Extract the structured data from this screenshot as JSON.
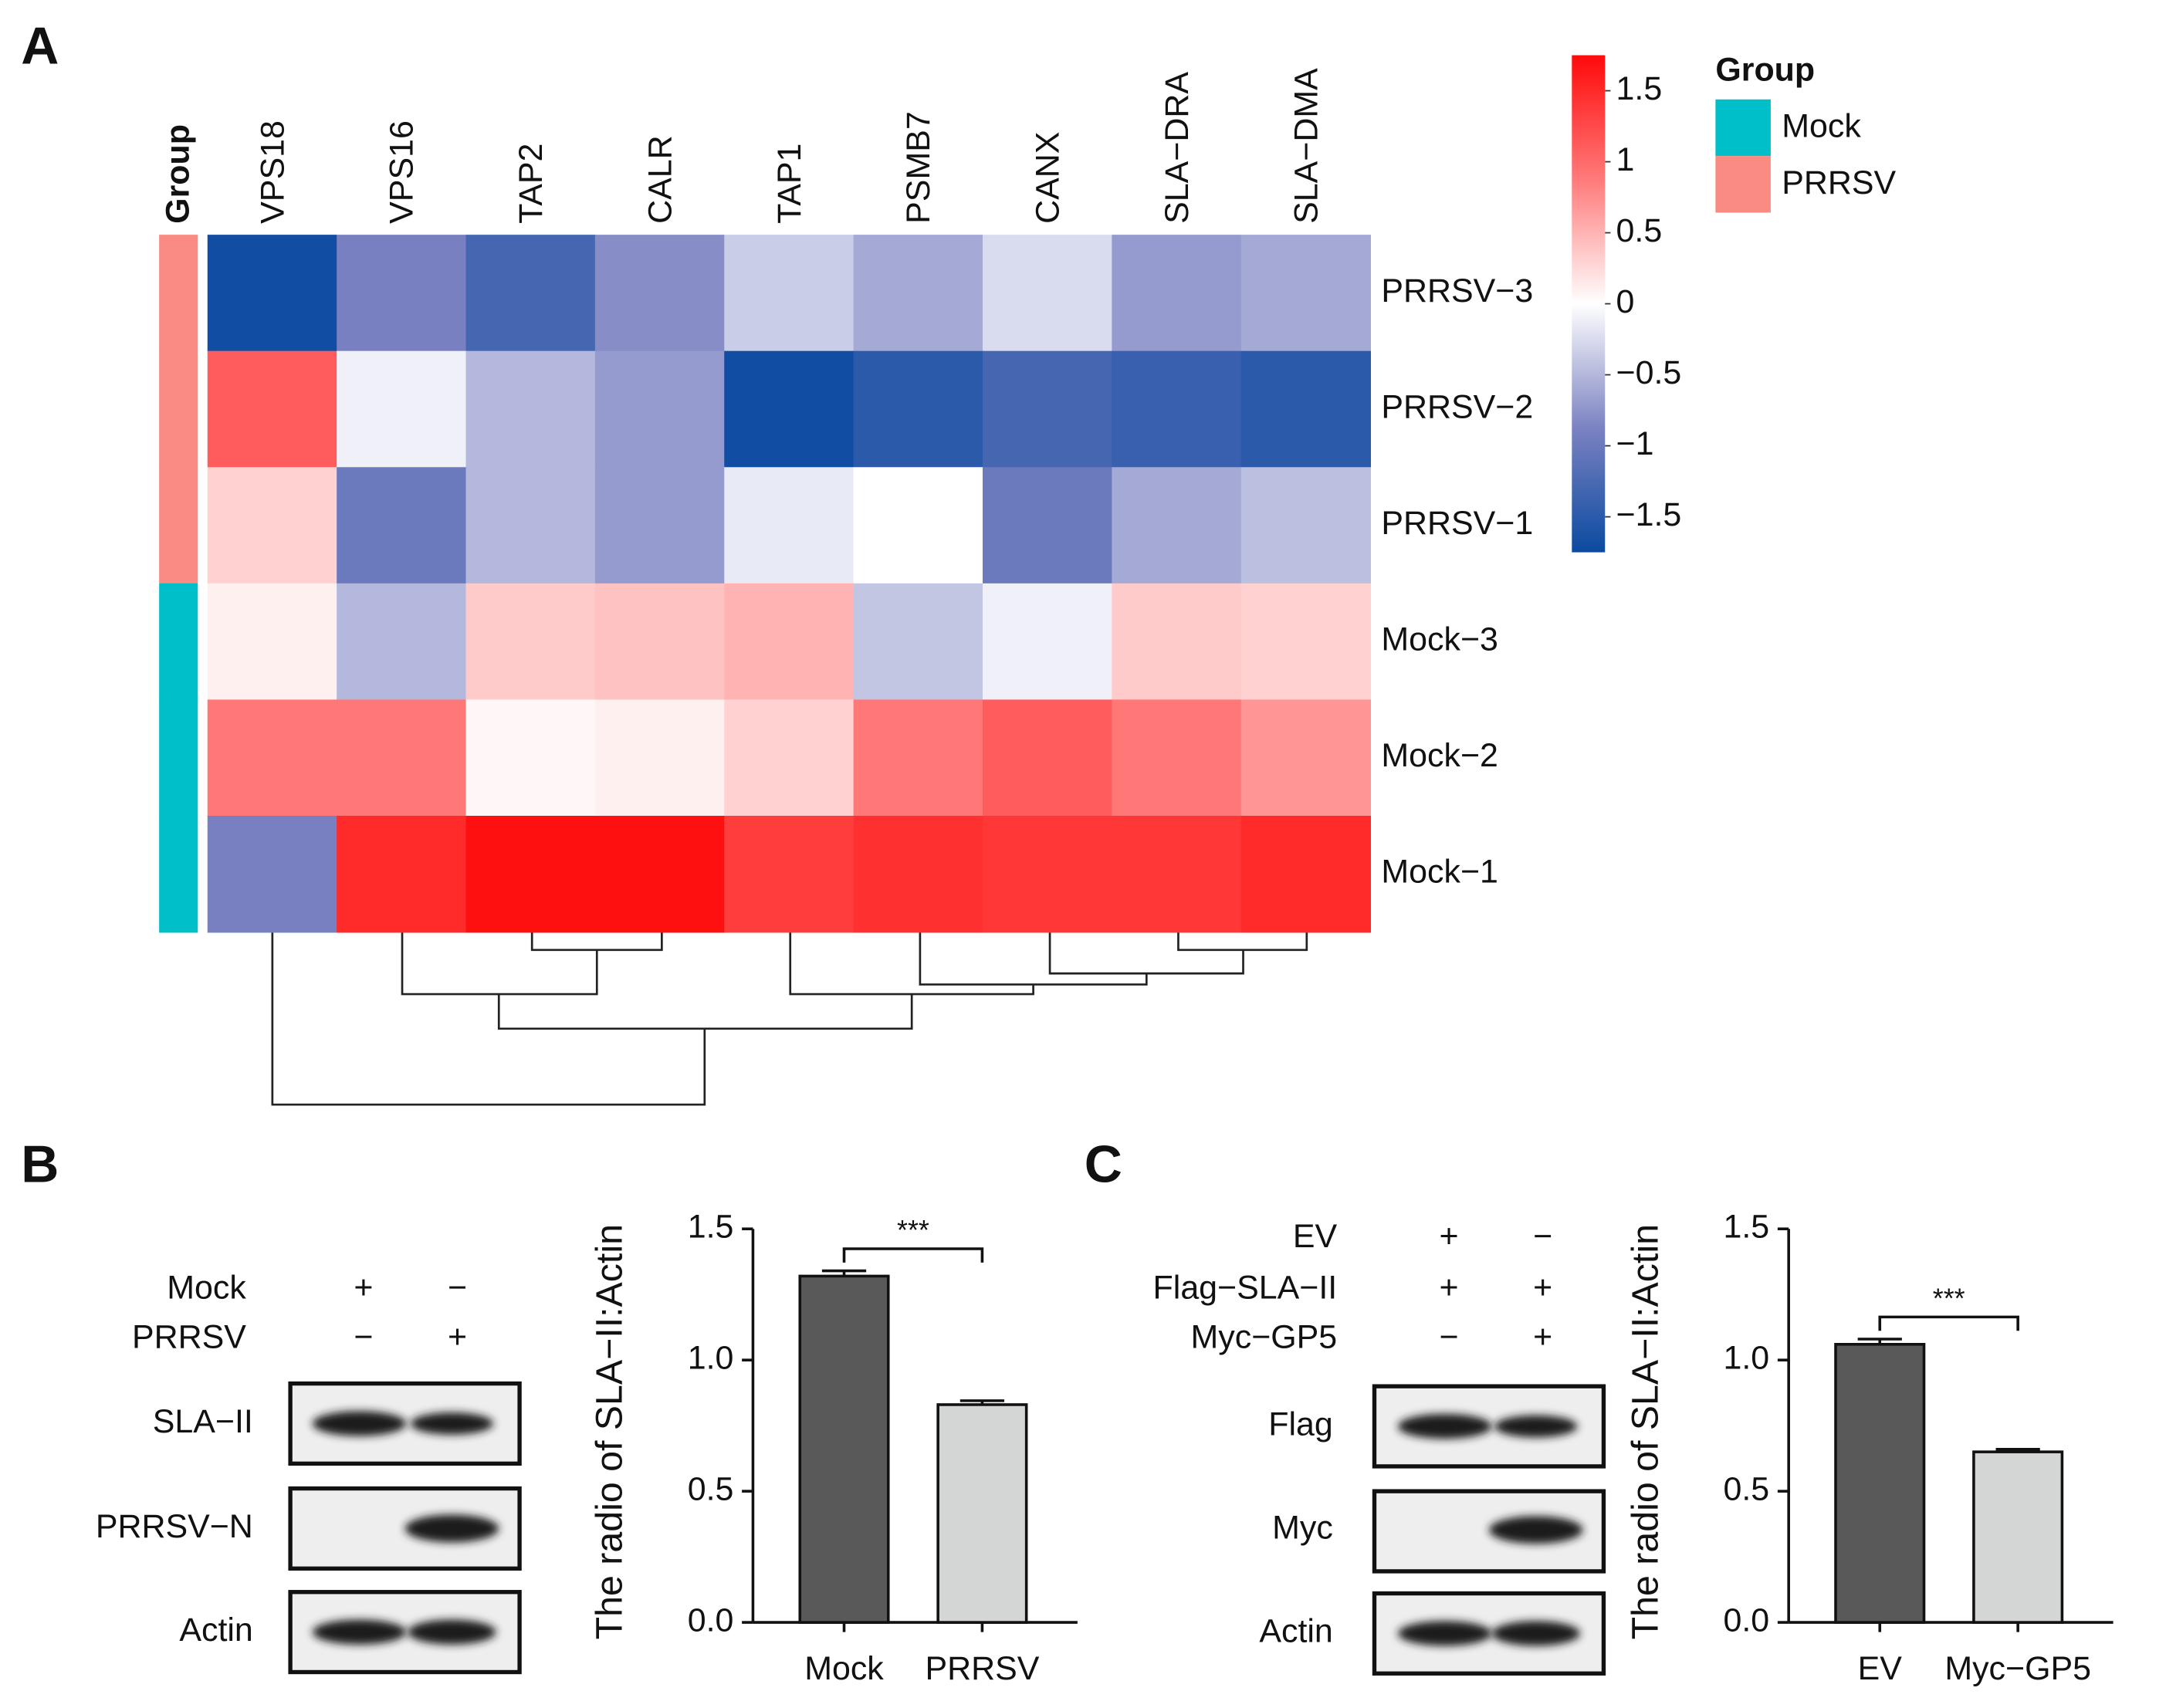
{
  "panel_labels": [
    "A",
    "B",
    "C"
  ],
  "chart_data": [
    {
      "type": "heatmap",
      "group_column_label": "Group",
      "columns": [
        "VPS18",
        "VPS16",
        "TAP2",
        "CALR",
        "TAP1",
        "PSMB7",
        "CANX",
        "SLA−DRA",
        "SLA−DMA"
      ],
      "rows": [
        "PRRSV−3",
        "PRRSV−2",
        "PRRSV−1",
        "Mock−3",
        "Mock−2",
        "Mock−1"
      ],
      "row_groups": [
        1,
        1,
        1,
        0,
        0,
        0
      ],
      "values": [
        [
          -1.7,
          -0.9,
          -1.3,
          -0.8,
          -0.35,
          -0.6,
          -0.25,
          -0.7,
          -0.6
        ],
        [
          1.1,
          -0.1,
          -0.5,
          -0.7,
          -1.7,
          -1.5,
          -1.3,
          -1.4,
          -1.5
        ],
        [
          0.3,
          -1.0,
          -0.5,
          -0.7,
          -0.15,
          0.0,
          -1.0,
          -0.6,
          -0.45
        ],
        [
          0.1,
          -0.5,
          0.35,
          0.4,
          0.5,
          -0.4,
          -0.1,
          0.35,
          0.3
        ],
        [
          0.9,
          0.9,
          0.05,
          0.1,
          0.3,
          0.9,
          1.1,
          0.9,
          0.7
        ],
        [
          -0.9,
          1.5,
          1.7,
          1.7,
          1.35,
          1.45,
          1.4,
          1.4,
          1.5
        ]
      ],
      "zlim": [
        -1.75,
        1.75
      ],
      "zticks": [
        {
          "value": -1.5,
          "label": "−1.5"
        },
        {
          "value": -1,
          "label": "−1"
        },
        {
          "value": -0.5,
          "label": "−0.5"
        },
        0,
        0.5,
        1,
        1.5
      ],
      "colors": [
        "#0b4aa0",
        "#7b82c2",
        "#ffffff",
        "#ff7a7a",
        "#ff0a0a"
      ],
      "legend_title": "Group",
      "groups": [
        {
          "name": "Mock",
          "color": "#00bfc8"
        },
        {
          "name": "PRRSV",
          "color": "#fa8b82"
        }
      ]
    },
    {
      "type": "bar",
      "ylabel": "The radio of SLA−II:Actin",
      "categories": [
        "Mock",
        "PRRSV"
      ],
      "values": [
        1.32,
        0.83
      ],
      "errors": [
        0.02,
        0.015
      ],
      "colors": [
        "#595959",
        "#d4d6d5"
      ],
      "ylim": [
        0,
        1.5
      ],
      "yticks": [
        {
          "value": 0,
          "label": "0.0"
        },
        0.5,
        {
          "value": 1,
          "label": "1.0"
        },
        1.5
      ],
      "annotation": "***"
    },
    {
      "type": "bar",
      "ylabel": "The radio of SLA−II:Actin",
      "categories": [
        "EV",
        "Myc−GP5"
      ],
      "values": [
        1.06,
        0.65
      ],
      "errors": [
        0.02,
        0.01
      ],
      "colors": [
        "#595959",
        "#d4d6d5"
      ],
      "ylim": [
        0,
        1.5
      ],
      "yticks": [
        {
          "value": 0,
          "label": "0.0"
        },
        0.5,
        {
          "value": 1,
          "label": "1.0"
        },
        1.5
      ],
      "annotation": "***"
    }
  ],
  "blots": [
    {
      "conditions": [
        {
          "name": "Mock",
          "signs": [
            "+",
            "−"
          ]
        },
        {
          "name": "PRRSV",
          "signs": [
            "−",
            "+"
          ]
        }
      ],
      "bands": [
        "SLA−II",
        "PRRSV−N",
        "Actin"
      ]
    },
    {
      "conditions": [
        {
          "name": "EV",
          "signs": [
            "+",
            "−"
          ]
        },
        {
          "name": "Flag−SLA−II",
          "signs": [
            "+",
            "+"
          ]
        },
        {
          "name": "Myc−GP5",
          "signs": [
            "−",
            "+"
          ]
        }
      ],
      "bands": [
        "Flag",
        "Myc",
        "Actin"
      ]
    }
  ]
}
